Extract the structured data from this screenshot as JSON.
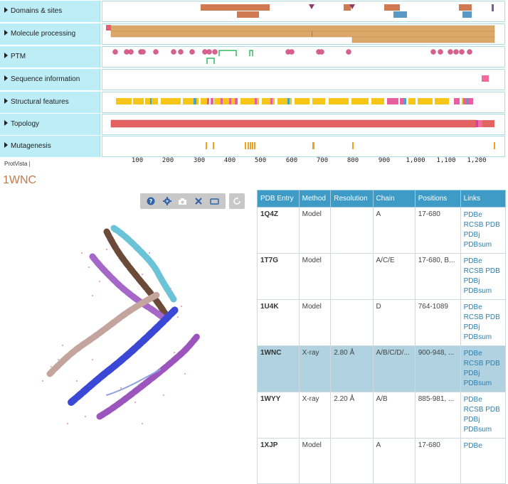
{
  "tracks": {
    "labels": [
      "Domains & sites",
      "Molecule processing",
      "PTM",
      "Sequence information",
      "Structural features",
      "Topology",
      "Mutagenesis"
    ],
    "axis_ticks": [
      "100",
      "200",
      "300",
      "400",
      "500",
      "600",
      "700",
      "800",
      "900",
      "1,000",
      "1,100",
      "1,200"
    ],
    "footer": "ProtVista"
  },
  "colors": {
    "label_bg": "#bdeef7",
    "domain": "#cf7a52",
    "site": "#5a99c6",
    "chain": "#dba869",
    "ptm": "#d9608e",
    "disulfide": "#37b861",
    "seqinfo": "#f06d9b",
    "helix": "#f5c518",
    "strand": "#e75fa0",
    "turn": "#44a6c4",
    "topology": "#e36363",
    "mutagenesis": "#f2a01f",
    "header_bg": "#3e9bc6",
    "selected_row": "#b0d2e1",
    "link": "#2b7fb0"
  },
  "structure": {
    "title": "1WNC",
    "toolbar_icons": [
      "help-icon",
      "settings-icon",
      "camera-icon",
      "tools-icon",
      "fullscreen-icon",
      "spin-icon"
    ]
  },
  "pdb_table": {
    "headers": [
      "PDB Entry",
      "Method",
      "Resolution",
      "Chain",
      "Positions",
      "Links"
    ],
    "rows": [
      {
        "entry": "1Q4Z",
        "method": "Model",
        "resolution": "",
        "chain": "A",
        "positions": "17-680",
        "links": [
          "PDBe",
          "RCSB PDB",
          "PDBj",
          "PDBsum"
        ]
      },
      {
        "entry": "1T7G",
        "method": "Model",
        "resolution": "",
        "chain": "A/C/E",
        "positions": "17-680, B...",
        "links": [
          "PDBe",
          "RCSB PDB",
          "PDBj",
          "PDBsum"
        ]
      },
      {
        "entry": "1U4K",
        "method": "Model",
        "resolution": "",
        "chain": "D",
        "positions": "764-1089",
        "links": [
          "PDBe",
          "RCSB PDB",
          "PDBj",
          "PDBsum"
        ]
      },
      {
        "entry": "1WNC",
        "method": "X-ray",
        "resolution": "2.80 Å",
        "chain": "A/B/C/D/...",
        "positions": "900-948, ...",
        "links": [
          "PDBe",
          "RCSB PDB",
          "PDBj",
          "PDBsum"
        ],
        "selected": true
      },
      {
        "entry": "1WYY",
        "method": "X-ray",
        "resolution": "2.20 Å",
        "chain": "A/B",
        "positions": "885-981, ...",
        "links": [
          "PDBe",
          "RCSB PDB",
          "PDBj",
          "PDBsum"
        ]
      },
      {
        "entry": "1XJP",
        "method": "Model",
        "resolution": "",
        "chain": "A",
        "positions": "17-680",
        "links": [
          "PDBe"
        ]
      }
    ]
  }
}
